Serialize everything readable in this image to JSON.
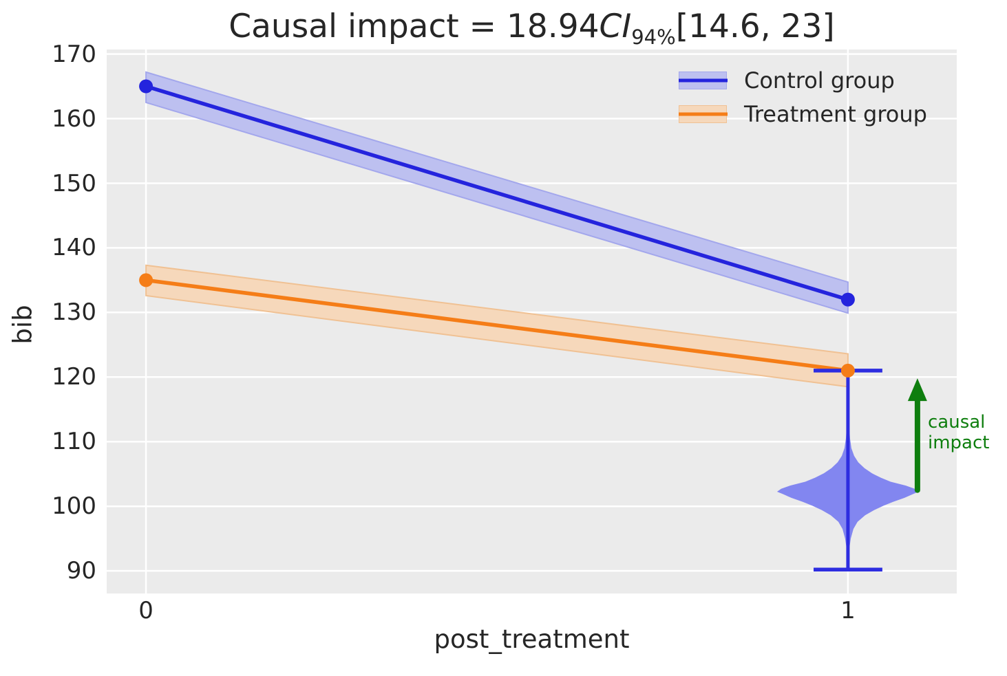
{
  "colors": {
    "figure_bg": "#ffffff",
    "plot_bg": "#ebebeb",
    "grid": "#ffffff",
    "text": "#262626",
    "green": "#0e7e0e"
  },
  "chart_data": {
    "type": "line",
    "title": "Causal impact = 18.94CI94%[14.6, 23]",
    "title_parts": {
      "prefix": "Causal impact = 18.94",
      "ci": "CI",
      "ci_sub": "94%",
      "suffix": "[14.6, 23]"
    },
    "xlabel": "post_treatment",
    "ylabel": "bib",
    "x": [
      0,
      1
    ],
    "xticks": [
      0,
      1
    ],
    "yticks": [
      90,
      100,
      110,
      120,
      130,
      140,
      150,
      160,
      170
    ],
    "xlim": [
      -0.056,
      1.155
    ],
    "ylim": [
      86.5,
      170.7
    ],
    "grid": true,
    "legend_position": "upper right",
    "series": [
      {
        "name": "Control group",
        "values": [
          165,
          132
        ],
        "ci_lower": [
          162.5,
          129.9
        ],
        "ci_upper": [
          167.2,
          134.7
        ],
        "color": "#2424dd",
        "band_color": "#bdc0f0",
        "band_edge": "#a3a7ec"
      },
      {
        "name": "Treatment group",
        "values": [
          135,
          121
        ],
        "ci_lower": [
          132.6,
          118.5
        ],
        "ci_upper": [
          137.3,
          123.6
        ],
        "color": "#f57d17",
        "band_color": "#f6d8bb",
        "band_edge": "#f0c193"
      }
    ],
    "posterior_violin": {
      "x": 1,
      "whisker_low": 90.2,
      "whisker_high": 121,
      "cap_halfwidth": 0.049,
      "mode": 102.3,
      "fill_color": "#8286f0",
      "line_color": "#2d2de0",
      "density": [
        [
          113.5,
          0.0008
        ],
        [
          112.0,
          0.002
        ],
        [
          110.5,
          0.0029
        ],
        [
          109.0,
          0.0049
        ],
        [
          107.8,
          0.0088
        ],
        [
          106.8,
          0.0147
        ],
        [
          105.9,
          0.0235
        ],
        [
          105.1,
          0.0343
        ],
        [
          104.4,
          0.0471
        ],
        [
          103.8,
          0.0608
        ],
        [
          103.2,
          0.0824
        ],
        [
          102.7,
          0.0951
        ],
        [
          102.25,
          0.101
        ],
        [
          101.9,
          0.0931
        ],
        [
          101.3,
          0.0804
        ],
        [
          100.7,
          0.0647
        ],
        [
          100.1,
          0.051
        ],
        [
          99.4,
          0.0373
        ],
        [
          98.6,
          0.0245
        ],
        [
          97.6,
          0.0137
        ],
        [
          96.5,
          0.0078
        ],
        [
          95.0,
          0.004
        ],
        [
          93.5,
          0.002
        ],
        [
          92.5,
          0.0008
        ]
      ]
    },
    "causal_impact_arrow": {
      "x": 1.099,
      "y_start": 102.5,
      "y_end": 119.8,
      "color": "#0e7e0e",
      "label": "causal\nimpact"
    }
  }
}
